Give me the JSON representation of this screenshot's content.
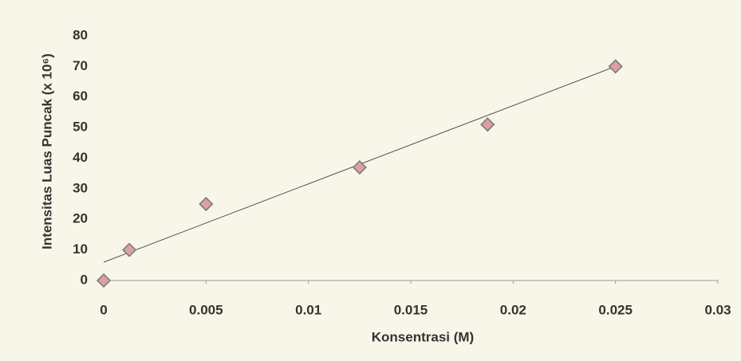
{
  "chart_data": {
    "type": "scatter",
    "x_label": "Konsentrasi (M)",
    "y_label": "Intensitas Luas Puncak (x 10⁶)",
    "x": [
      0,
      0.00125,
      0.005,
      0.0125,
      0.01875,
      0.025
    ],
    "values": [
      0,
      10,
      25,
      37,
      51,
      70
    ],
    "color": "#d9a0a8",
    "trendline": {
      "x": [
        0,
        0.025
      ],
      "values": [
        6,
        70
      ],
      "color": "#555555"
    },
    "xlim": [
      0,
      0.03
    ],
    "xticks": [
      0,
      0.005,
      0.01,
      0.015,
      0.02,
      0.025,
      0.03
    ],
    "ylim": [
      0,
      80
    ],
    "yticks": [
      0,
      10,
      20,
      30,
      40,
      50,
      60,
      70,
      80
    ]
  }
}
